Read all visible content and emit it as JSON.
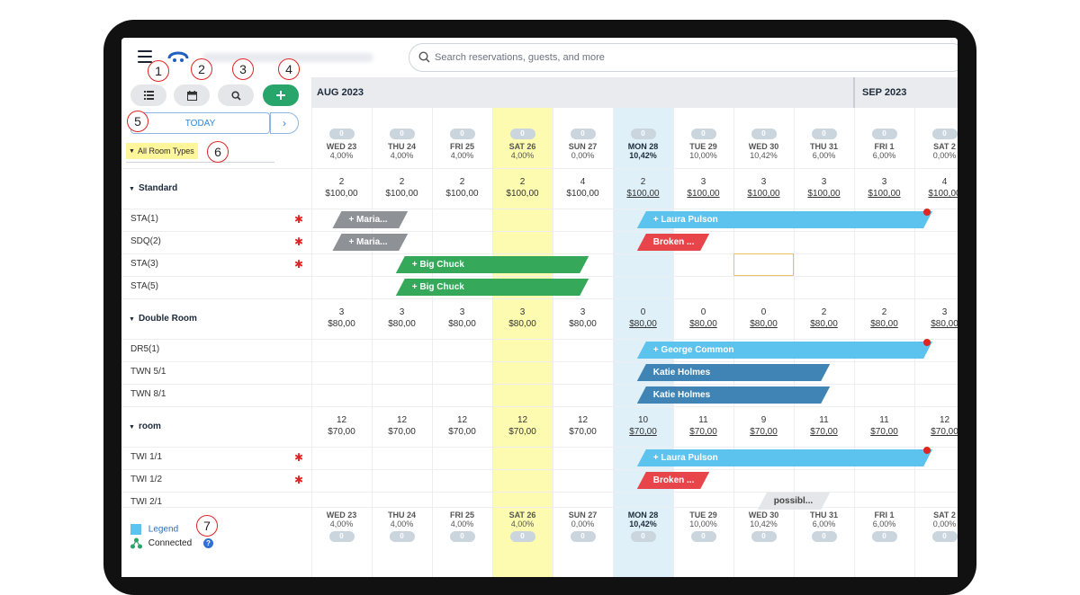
{
  "search": {
    "placeholder": "Search reservations, guests, and more"
  },
  "toolbar": {
    "list_icon": "list-icon",
    "calendar_icon": "calendar-icon",
    "search_icon": "search-icon",
    "add_icon": "plus-icon"
  },
  "nav": {
    "today_label": "TODAY",
    "next_label": "›"
  },
  "filter": {
    "room_types_label": "All Room Types"
  },
  "badges": [
    "1",
    "2",
    "3",
    "4",
    "5",
    "6",
    "7"
  ],
  "months": [
    {
      "label": "AUG 2023"
    },
    {
      "label": "SEP 2023"
    }
  ],
  "days": [
    {
      "count": "0",
      "day": "WED 23",
      "pct": "4,00%"
    },
    {
      "count": "0",
      "day": "THU 24",
      "pct": "4,00%"
    },
    {
      "count": "0",
      "day": "FRI 25",
      "pct": "4,00%"
    },
    {
      "count": "0",
      "day": "SAT 26",
      "pct": "4,00%"
    },
    {
      "count": "0",
      "day": "SUN 27",
      "pct": "0,00%"
    },
    {
      "count": "0",
      "day": "MON 28",
      "pct": "10,42%"
    },
    {
      "count": "0",
      "day": "TUE 29",
      "pct": "10,00%"
    },
    {
      "count": "0",
      "day": "WED 30",
      "pct": "10,42%"
    },
    {
      "count": "0",
      "day": "THU 31",
      "pct": "6,00%"
    },
    {
      "count": "0",
      "day": "FRI 1",
      "pct": "6,00%"
    },
    {
      "count": "0",
      "day": "SAT 2",
      "pct": "0,00%"
    }
  ],
  "groups": [
    {
      "name": "Standard",
      "avail": [
        "2",
        "2",
        "2",
        "2",
        "4",
        "2",
        "3",
        "3",
        "3",
        "3",
        "4"
      ],
      "prices": [
        "$100,00",
        "$100,00",
        "$100,00",
        "$100,00",
        "$100,00",
        "$100,00",
        "$100,00",
        "$100,00",
        "$100,00",
        "$100,00",
        "$100,00"
      ],
      "rooms": [
        "STA(1)",
        "SDQ(2)",
        "STA(3)",
        "STA(5)"
      ]
    },
    {
      "name": "Double Room",
      "avail": [
        "3",
        "3",
        "3",
        "3",
        "3",
        "0",
        "0",
        "0",
        "2",
        "2",
        "3"
      ],
      "prices": [
        "$80,00",
        "$80,00",
        "$80,00",
        "$80,00",
        "$80,00",
        "$80,00",
        "$80,00",
        "$80,00",
        "$80,00",
        "$80,00",
        "$80,00"
      ],
      "rooms": [
        "DR5(1)",
        "TWN 5/1",
        "TWN 8/1"
      ]
    },
    {
      "name": "room",
      "avail": [
        "12",
        "12",
        "12",
        "12",
        "12",
        "10",
        "11",
        "9",
        "11",
        "11",
        "12"
      ],
      "prices": [
        "$70,00",
        "$70,00",
        "$70,00",
        "$70,00",
        "$70,00",
        "$70,00",
        "$70,00",
        "$70,00",
        "$70,00",
        "$70,00",
        "$70,00"
      ],
      "rooms": [
        "TWI 1/1",
        "TWI 1/2",
        "TWI 2/1"
      ]
    }
  ],
  "bookings": [
    {
      "label": "+ Maria...",
      "color": "#8e9297"
    },
    {
      "label": "+ Laura Pulson",
      "color": "#5cc3ef"
    },
    {
      "label": "+ Maria...",
      "color": "#8e9297"
    },
    {
      "label": "Broken ...",
      "color": "#e8454a"
    },
    {
      "label": "+ Big Chuck",
      "color": "#35a85a"
    },
    {
      "label": "+ Big Chuck",
      "color": "#35a85a"
    },
    {
      "label": "+ George Common",
      "color": "#5cc3ef"
    },
    {
      "label": "Katie Holmes",
      "color": "#3f84b4"
    },
    {
      "label": "Katie Holmes",
      "color": "#3f84b4"
    },
    {
      "label": "+ Laura Pulson",
      "color": "#5cc3ef"
    },
    {
      "label": "Broken ...",
      "color": "#e8454a"
    },
    {
      "label": "possibl...",
      "color": "#e4e6ea"
    }
  ],
  "footer": {
    "legend_label": "Legend",
    "connected_label": "Connected",
    "help_icon": "?"
  }
}
